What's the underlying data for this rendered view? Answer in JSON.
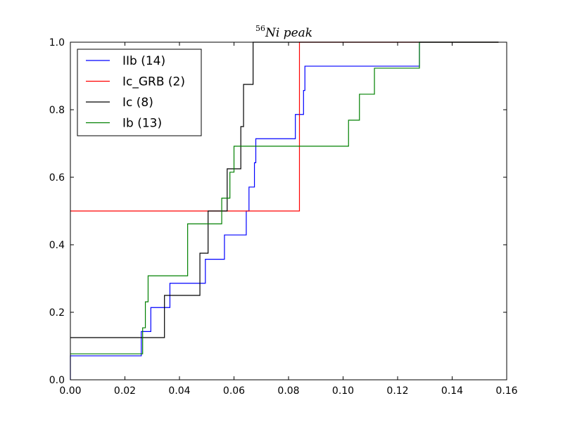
{
  "chart_data": {
    "type": "line",
    "step": true,
    "title_sup": "56",
    "title": "Ni peak",
    "xlabel": "",
    "ylabel": "",
    "xlim": [
      0.0,
      0.16
    ],
    "ylim": [
      0.0,
      1.0
    ],
    "x_ticks": [
      "0.00",
      "0.02",
      "0.04",
      "0.06",
      "0.08",
      "0.10",
      "0.12",
      "0.14",
      "0.16"
    ],
    "y_ticks": [
      "0.0",
      "0.2",
      "0.4",
      "0.6",
      "0.8",
      "1.0"
    ],
    "grid": false,
    "legend_placement": "top-left",
    "series": [
      {
        "name": "IIb (14)",
        "color": "#0000ff",
        "x": [
          0.0,
          0.0,
          0.026,
          0.0295,
          0.0365,
          0.0495,
          0.0565,
          0.0645,
          0.0655,
          0.0675,
          0.068,
          0.0825,
          0.0855,
          0.086,
          0.128,
          0.157
        ],
        "y": [
          0.0,
          0.071,
          0.143,
          0.214,
          0.286,
          0.357,
          0.429,
          0.5,
          0.571,
          0.643,
          0.714,
          0.786,
          0.857,
          0.929,
          1.0,
          1.0
        ]
      },
      {
        "name": "Ic_GRB (2)",
        "color": "#ff0000",
        "x": [
          0.0,
          0.084,
          0.157
        ],
        "y": [
          0.5,
          1.0,
          1.0
        ]
      },
      {
        "name": "Ic (8)",
        "color": "#000000",
        "x": [
          0.0,
          0.0345,
          0.0475,
          0.0505,
          0.0575,
          0.0605,
          0.0625,
          0.0635,
          0.067,
          0.157
        ],
        "y": [
          0.125,
          0.25,
          0.375,
          0.5,
          0.625,
          0.625,
          0.75,
          0.875,
          1.0,
          1.0
        ]
      },
      {
        "name": "Ib (13)",
        "color": "#008000",
        "x": [
          0.0,
          0.0265,
          0.0275,
          0.0285,
          0.043,
          0.0555,
          0.0575,
          0.0585,
          0.06,
          0.102,
          0.106,
          0.1115,
          0.128,
          0.157
        ],
        "y": [
          0.077,
          0.154,
          0.231,
          0.308,
          0.462,
          0.538,
          0.538,
          0.615,
          0.692,
          0.769,
          0.846,
          0.923,
          1.0,
          1.0
        ]
      }
    ]
  }
}
